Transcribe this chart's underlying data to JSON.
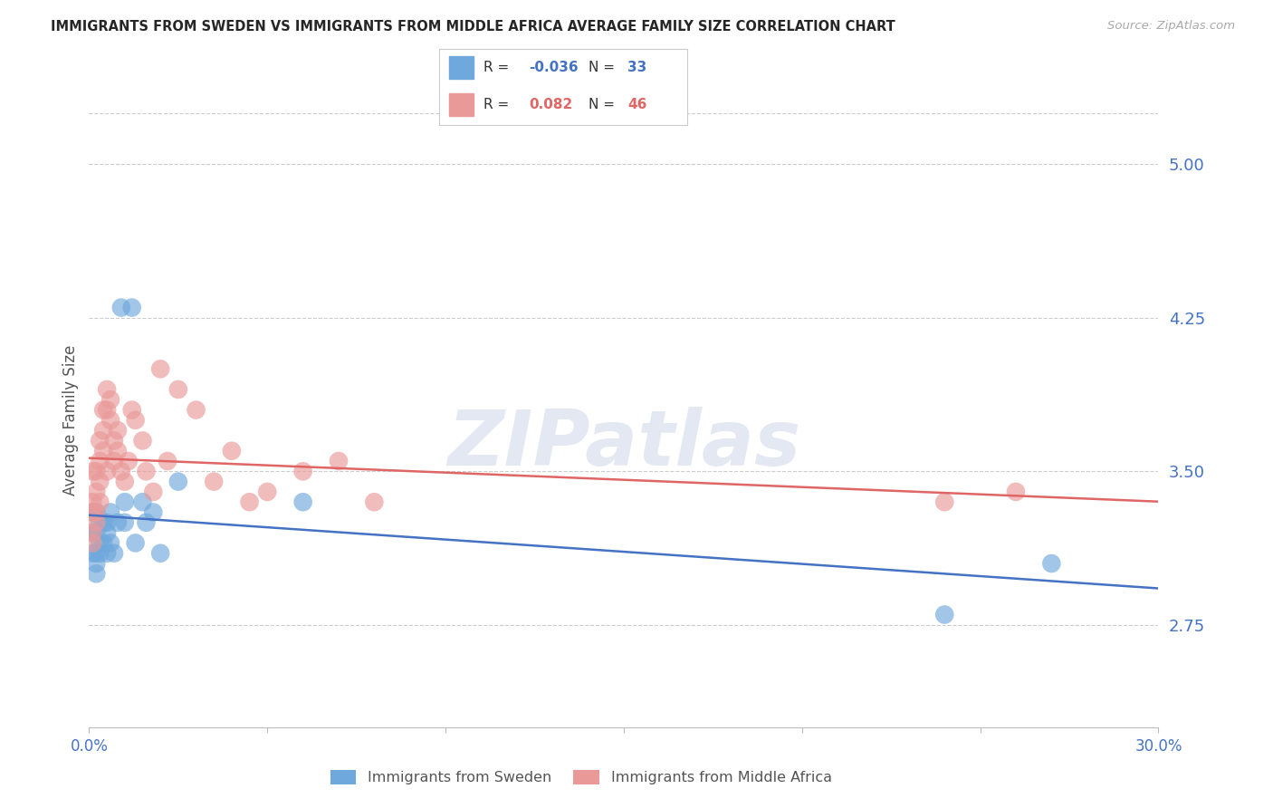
{
  "title": "IMMIGRANTS FROM SWEDEN VS IMMIGRANTS FROM MIDDLE AFRICA AVERAGE FAMILY SIZE CORRELATION CHART",
  "source": "Source: ZipAtlas.com",
  "ylabel": "Average Family Size",
  "legend_sweden": "Immigrants from Sweden",
  "legend_africa": "Immigrants from Middle Africa",
  "r_sweden": "-0.036",
  "n_sweden": "33",
  "r_africa": "0.082",
  "n_africa": "46",
  "ylim_min": 2.25,
  "ylim_max": 5.25,
  "xlim_min": 0.0,
  "xlim_max": 0.3,
  "yticks": [
    2.75,
    3.5,
    4.25,
    5.0
  ],
  "ytick_labels": [
    "2.75",
    "3.50",
    "4.25",
    "5.00"
  ],
  "xticks": [
    0.0,
    0.05,
    0.1,
    0.15,
    0.2,
    0.25,
    0.3
  ],
  "xtick_labels": [
    "0.0%",
    "",
    "",
    "",
    "",
    "",
    "30.0%"
  ],
  "color_sweden": "#6fa8dc",
  "color_africa": "#ea9999",
  "color_sweden_line": "#4472c4",
  "color_africa_line": "#e06666",
  "color_axis_labels": "#4472c4",
  "color_title": "#262626",
  "watermark": "ZIPatlas",
  "sweden_x": [
    0.001,
    0.001,
    0.001,
    0.002,
    0.002,
    0.002,
    0.002,
    0.002,
    0.003,
    0.003,
    0.003,
    0.004,
    0.004,
    0.005,
    0.005,
    0.005,
    0.006,
    0.006,
    0.007,
    0.008,
    0.009,
    0.01,
    0.01,
    0.012,
    0.013,
    0.015,
    0.016,
    0.018,
    0.02,
    0.025,
    0.06,
    0.24,
    0.27
  ],
  "sweden_y": [
    3.3,
    3.2,
    3.1,
    3.3,
    3.2,
    3.1,
    3.05,
    3.0,
    3.25,
    3.15,
    3.1,
    3.25,
    3.15,
    3.2,
    3.1,
    3.25,
    3.3,
    3.15,
    3.1,
    3.25,
    4.3,
    3.35,
    3.25,
    4.3,
    3.15,
    3.35,
    3.25,
    3.3,
    3.1,
    3.45,
    3.35,
    2.8,
    3.05
  ],
  "africa_x": [
    0.001,
    0.001,
    0.001,
    0.001,
    0.001,
    0.002,
    0.002,
    0.002,
    0.002,
    0.003,
    0.003,
    0.003,
    0.003,
    0.004,
    0.004,
    0.004,
    0.005,
    0.005,
    0.005,
    0.006,
    0.006,
    0.007,
    0.007,
    0.008,
    0.008,
    0.009,
    0.01,
    0.011,
    0.012,
    0.013,
    0.015,
    0.016,
    0.018,
    0.02,
    0.022,
    0.025,
    0.03,
    0.035,
    0.04,
    0.045,
    0.05,
    0.06,
    0.07,
    0.08,
    0.24,
    0.26
  ],
  "africa_y": [
    3.35,
    3.5,
    3.3,
    3.2,
    3.15,
    3.5,
    3.4,
    3.3,
    3.25,
    3.65,
    3.55,
    3.45,
    3.35,
    3.8,
    3.7,
    3.6,
    3.9,
    3.8,
    3.5,
    3.85,
    3.75,
    3.65,
    3.55,
    3.7,
    3.6,
    3.5,
    3.45,
    3.55,
    3.8,
    3.75,
    3.65,
    3.5,
    3.4,
    4.0,
    3.55,
    3.9,
    3.8,
    3.45,
    3.6,
    3.35,
    3.4,
    3.5,
    3.55,
    3.35,
    3.35,
    3.4
  ]
}
